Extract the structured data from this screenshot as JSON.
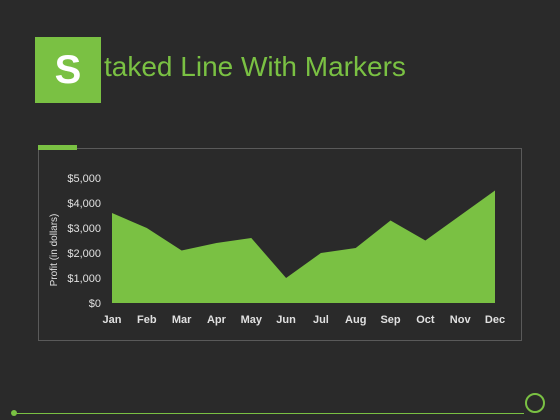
{
  "slide": {
    "title_letter": "S",
    "title_rest": "taked Line With Markers"
  },
  "colors": {
    "background": "#2a2a2a",
    "accent": "#7ac143",
    "text": "#e0e0e0",
    "frame": "#5a5a5a"
  },
  "chart_data": {
    "type": "area",
    "categories": [
      "Jan",
      "Feb",
      "Mar",
      "Apr",
      "May",
      "Jun",
      "Jul",
      "Aug",
      "Sep",
      "Oct",
      "Nov",
      "Dec"
    ],
    "series": [
      {
        "values": [
          3600,
          3000,
          2100,
          2400,
          2600,
          1000,
          2000,
          2200,
          3300,
          2500,
          3500,
          4500
        ]
      }
    ],
    "ylabel": "Profit (in dollars)",
    "ylim": [
      0,
      5000
    ],
    "yticks": [
      0,
      1000,
      2000,
      3000,
      4000,
      5000
    ],
    "ytick_labels": [
      "$0",
      "$1,000",
      "$2,000",
      "$3,000",
      "$4,000",
      "$5,000"
    ],
    "grid": false,
    "legend": "none"
  }
}
